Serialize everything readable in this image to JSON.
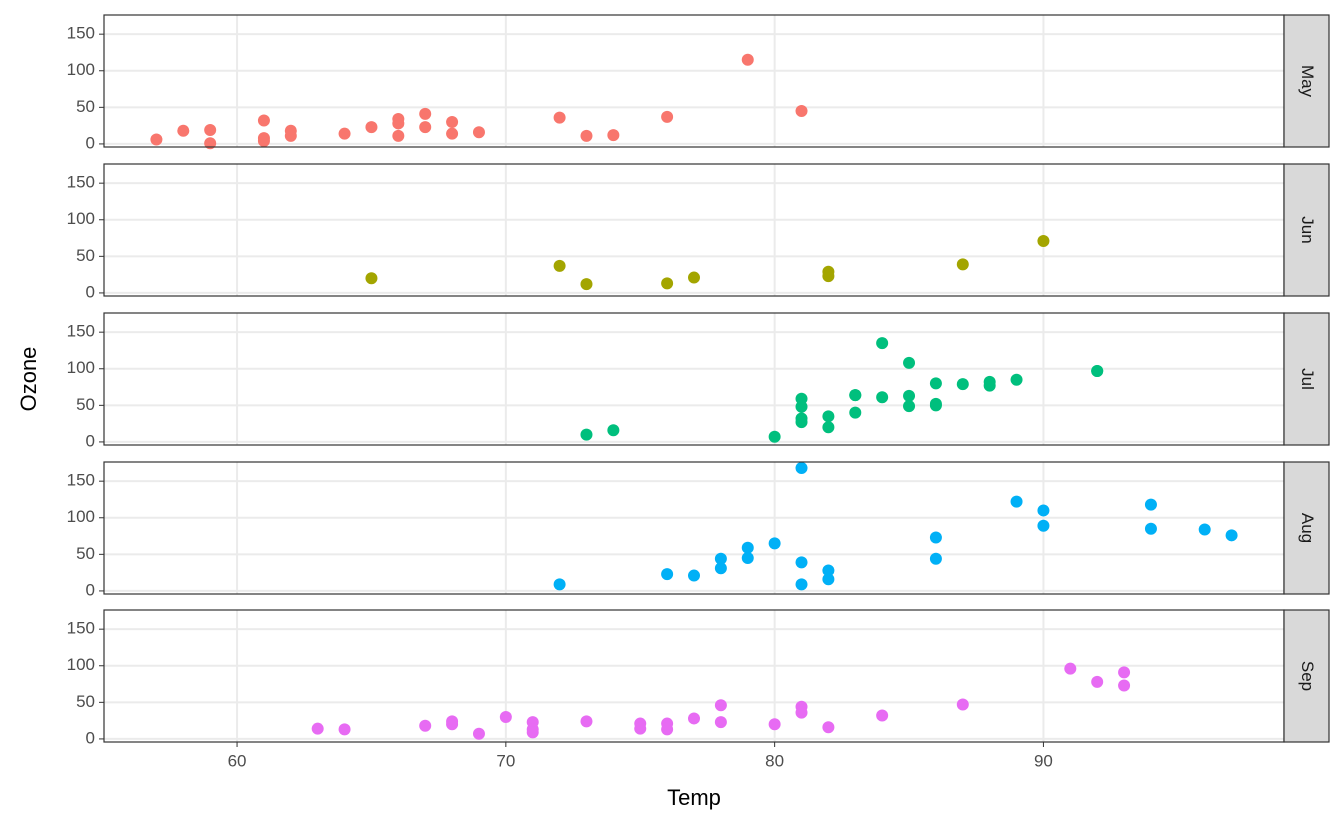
{
  "chart_data": {
    "type": "scatter",
    "x_label": "Temp",
    "y_label": "Ozone",
    "xlim": [
      55.05,
      98.95
    ],
    "xticks": [
      60,
      70,
      80,
      90
    ],
    "ylim": [
      -4.2,
      176.2
    ],
    "yticks": [
      0,
      50,
      100,
      150
    ],
    "grid": true,
    "series": [
      {
        "name": "May",
        "color": "#f8766d",
        "x": [
          67,
          72,
          74,
          62,
          66,
          65,
          59,
          61,
          69,
          66,
          68,
          58,
          64,
          66,
          57,
          68,
          62,
          59,
          73,
          61,
          61,
          67,
          81,
          79,
          76
        ],
        "values": [
          41,
          36,
          12,
          18,
          28,
          23,
          19,
          8,
          16,
          11,
          14,
          18,
          14,
          34,
          6,
          30,
          11,
          1,
          11,
          4,
          32,
          23,
          45,
          115,
          37
        ]
      },
      {
        "name": "Jun",
        "color": "#a3a500",
        "x": [
          82,
          90,
          87,
          82,
          77,
          72,
          65,
          73,
          76
        ],
        "values": [
          29,
          71,
          39,
          23,
          21,
          37,
          20,
          12,
          13
        ]
      },
      {
        "name": "Jul",
        "color": "#00bf7d",
        "x": [
          84,
          85,
          81,
          83,
          83,
          88,
          92,
          92,
          89,
          73,
          81,
          80,
          81,
          82,
          84,
          87,
          85,
          74,
          86,
          85,
          82,
          86,
          88,
          86,
          83,
          81
        ],
        "values": [
          135,
          49,
          32,
          64,
          40,
          77,
          97,
          97,
          85,
          10,
          27,
          7,
          48,
          35,
          61,
          79,
          63,
          16,
          80,
          108,
          20,
          52,
          82,
          50,
          64,
          59
        ]
      },
      {
        "name": "Aug",
        "color": "#00b0f6",
        "x": [
          72,
          76,
          77,
          78,
          78,
          79,
          79,
          80,
          81,
          81,
          81,
          82,
          82,
          86,
          86,
          89,
          90,
          90,
          94,
          94,
          96,
          97
        ],
        "values": [
          9,
          23,
          21,
          44,
          31,
          59,
          45,
          65,
          168,
          39,
          9,
          28,
          16,
          73,
          44,
          122,
          110,
          89,
          118,
          85,
          84,
          76
        ]
      },
      {
        "name": "Sep",
        "color": "#e76bf3",
        "x": [
          63,
          64,
          67,
          68,
          68,
          69,
          70,
          71,
          71,
          71,
          73,
          75,
          75,
          76,
          76,
          77,
          78,
          78,
          80,
          81,
          81,
          82,
          84,
          87,
          91,
          92,
          93,
          93
        ],
        "values": [
          14,
          13,
          18,
          20,
          24,
          7,
          30,
          23,
          13,
          9,
          24,
          21,
          14,
          21,
          13,
          28,
          46,
          23,
          20,
          44,
          36,
          16,
          32,
          47,
          96,
          78,
          91,
          73
        ]
      }
    ]
  }
}
